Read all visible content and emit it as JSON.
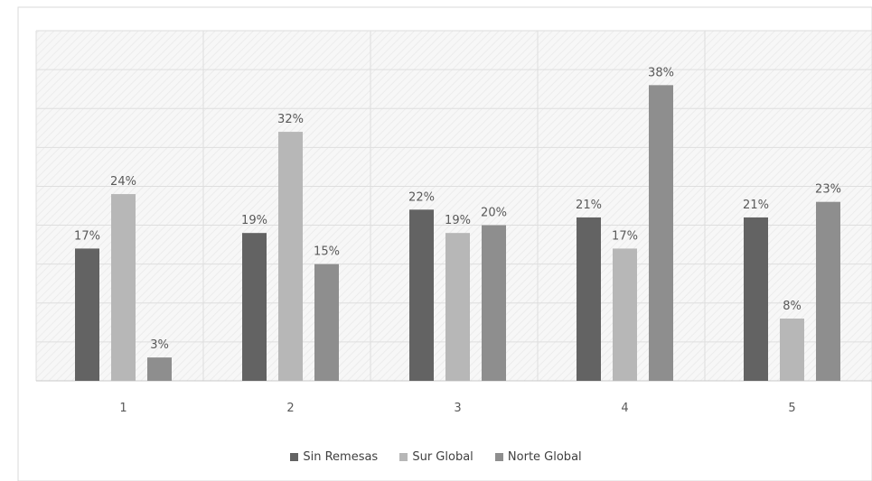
{
  "chart_data": {
    "type": "bar",
    "categories": [
      "1",
      "2",
      "3",
      "4",
      "5"
    ],
    "series": [
      {
        "name": "Sin Remesas",
        "values": [
          17,
          19,
          22,
          21,
          21
        ],
        "labels": [
          "17%",
          "19%",
          "22%",
          "21%",
          "21%"
        ],
        "color": "#636363"
      },
      {
        "name": "Sur Global",
        "values": [
          24,
          32,
          19,
          17,
          8
        ],
        "labels": [
          "24%",
          "32%",
          "19%",
          "17%",
          "8%"
        ],
        "color": "#b7b7b7"
      },
      {
        "name": "Norte Global",
        "values": [
          3,
          15,
          20,
          38,
          23
        ],
        "labels": [
          "3%",
          "15%",
          "20%",
          "38%",
          "23%"
        ],
        "color": "#8e8e8e"
      }
    ],
    "ylim": [
      0,
      45
    ],
    "grid": true,
    "legend_position": "bottom"
  }
}
